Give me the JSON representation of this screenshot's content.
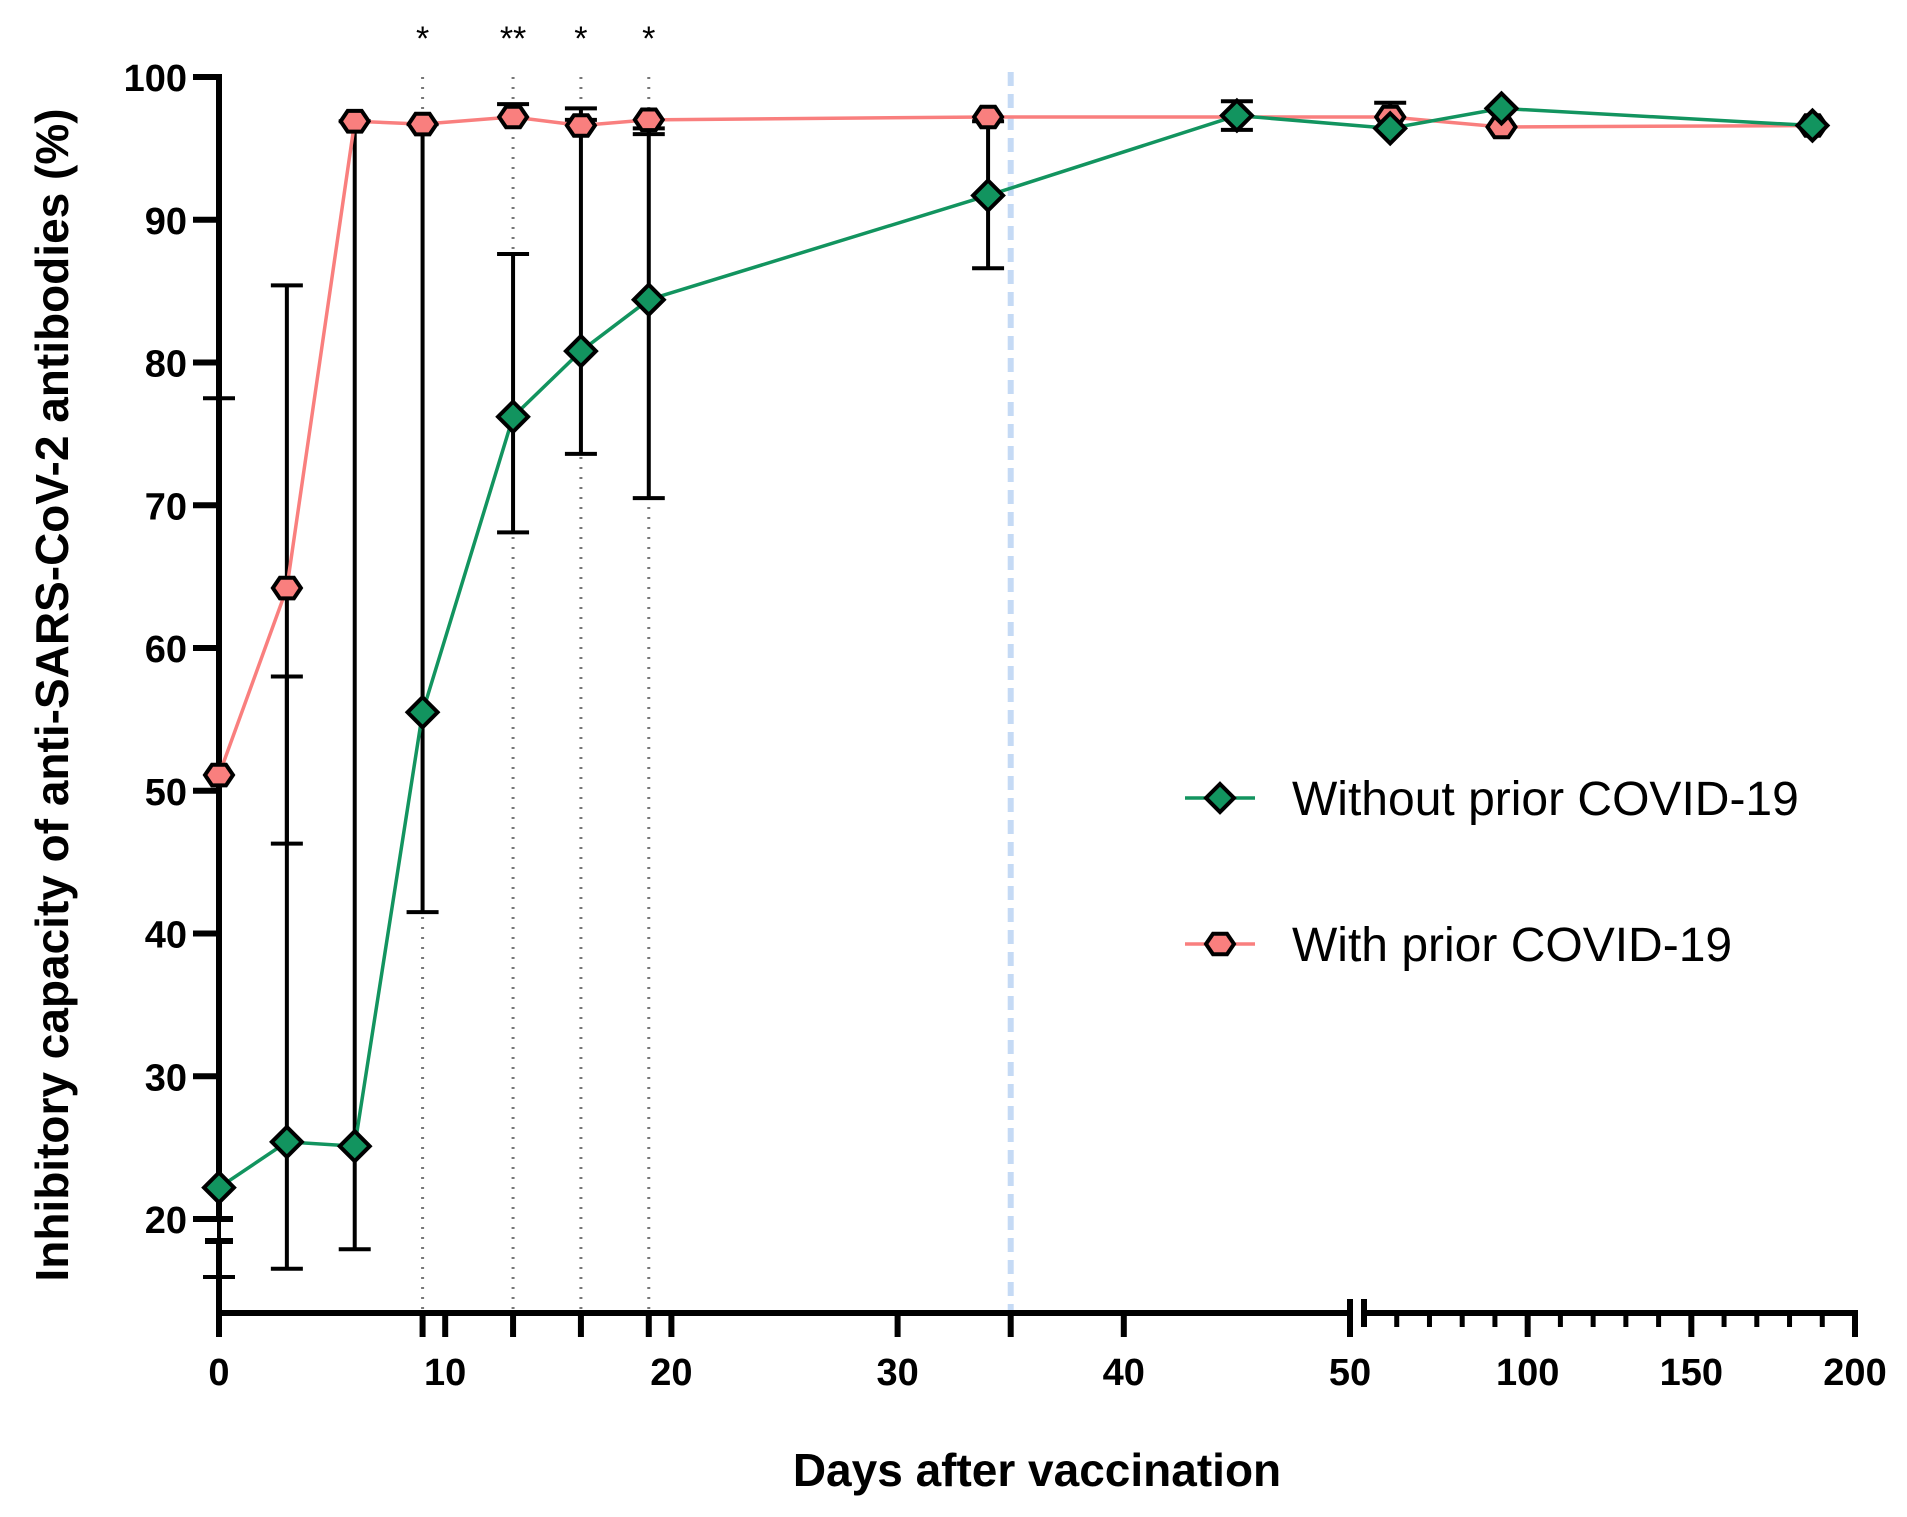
{
  "chart_data": {
    "type": "line",
    "title": "",
    "xlabel": "Days after vaccination",
    "ylabel": "Inhibitory capacity of anti-SARS-CoV-2 antibodies (%)",
    "x_axis": {
      "segments": [
        {
          "range": [
            0,
            50
          ],
          "ticks": [
            0,
            10,
            20,
            30,
            40,
            50
          ]
        },
        {
          "range": [
            50,
            200
          ],
          "ticks": [
            100,
            150,
            200
          ]
        }
      ],
      "break": true
    },
    "y_axis": {
      "segments": [
        {
          "range": [
            0,
            20
          ]
        },
        {
          "range": [
            20,
            100
          ],
          "ticks": [
            20,
            30,
            40,
            50,
            60,
            70,
            80,
            90,
            100
          ]
        }
      ],
      "break": true
    },
    "legend_position": "right-middle",
    "colors": {
      "without": "#12945F",
      "with": "#F97F7E",
      "reference_line": "#C5DAF5"
    },
    "series": [
      {
        "name": "Without prior COVID-19",
        "marker": "diamond",
        "x": [
          0,
          3,
          6,
          9,
          13,
          16,
          19,
          34,
          45,
          58,
          92,
          187
        ],
        "y": [
          22.2,
          25.4,
          25.1,
          55.5,
          76.2,
          80.8,
          84.4,
          91.7,
          97.3,
          96.4,
          97.8,
          96.6
        ],
        "err_low": [
          10,
          12.3,
          17.7,
          41.5,
          68.1,
          73.6,
          70.5,
          86.6,
          96.3,
          96.4,
          97.8,
          96.6
        ],
        "err_high": [
          20.8,
          58.0,
          96.9,
          96.7,
          87.6,
          97.0,
          96.4,
          96.9,
          98.3,
          96.4,
          97.8,
          96.6
        ]
      },
      {
        "name": "With prior COVID-19",
        "marker": "hexagon",
        "x": [
          0,
          3,
          6,
          9,
          13,
          16,
          19,
          34,
          58,
          92,
          187
        ],
        "y": [
          51.1,
          64.2,
          96.9,
          96.7,
          97.2,
          96.6,
          97.0,
          97.2,
          97.2,
          96.5,
          96.6
        ],
        "err_low": [
          51.1,
          46.3,
          96.9,
          96.7,
          97.2,
          96.6,
          96.0,
          97.2,
          97.2,
          96.5,
          96.6
        ],
        "err_high": [
          77.5,
          85.4,
          96.9,
          96.7,
          98.1,
          97.8,
          97.0,
          97.2,
          98.2,
          96.5,
          96.6
        ]
      }
    ],
    "significance": [
      {
        "x": 9,
        "label": "*"
      },
      {
        "x": 13,
        "label": "**"
      },
      {
        "x": 16,
        "label": "*"
      },
      {
        "x": 19,
        "label": "*"
      }
    ],
    "reference_line_x": 35
  }
}
